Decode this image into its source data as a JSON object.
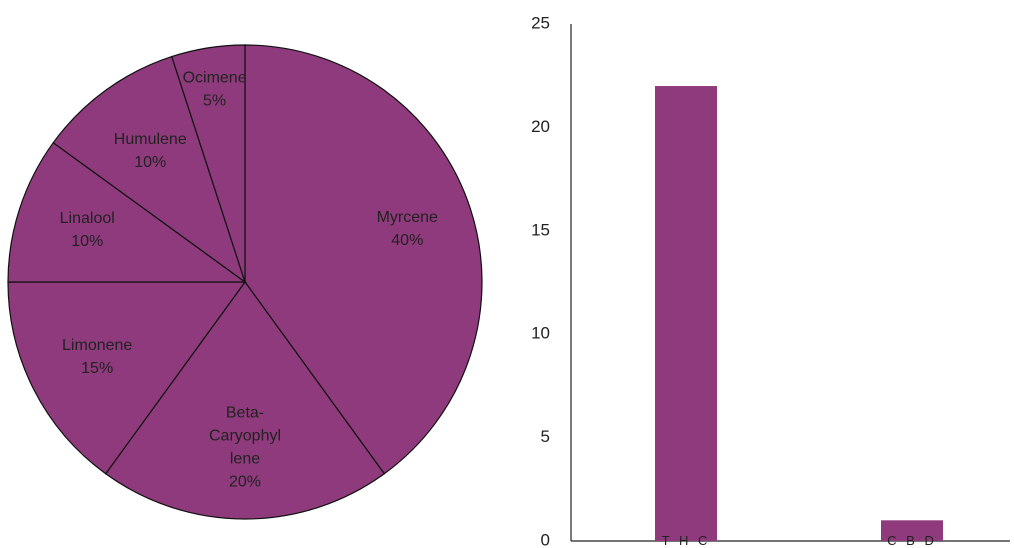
{
  "colors": {
    "slice": "#8e3a7c",
    "bar": "#8e3a7c",
    "stroke": "#111111",
    "axis": "#222222"
  },
  "chart_data": [
    {
      "type": "pie",
      "start_angle_deg": 0,
      "direction": "clockwise",
      "slices": [
        {
          "label_lines": [
            "Myrcene",
            "40%"
          ],
          "value": 40
        },
        {
          "label_lines": [
            "Beta-",
            "Caryophyl",
            "lene",
            "20%"
          ],
          "value": 20
        },
        {
          "label_lines": [
            "Limonene",
            "15%"
          ],
          "value": 15
        },
        {
          "label_lines": [
            "Linalool",
            "10%"
          ],
          "value": 10
        },
        {
          "label_lines": [
            "Humulene",
            "10%"
          ],
          "value": 10
        },
        {
          "label_lines": [
            "Ocimene",
            "5%"
          ],
          "value": 5
        }
      ]
    },
    {
      "type": "bar",
      "categories": [
        "T H C",
        "C B D"
      ],
      "values": [
        22,
        1
      ],
      "ylim": [
        0,
        25
      ],
      "yticks": [
        "0",
        "5",
        "10",
        "15",
        "20",
        "25"
      ],
      "grid": false
    }
  ]
}
